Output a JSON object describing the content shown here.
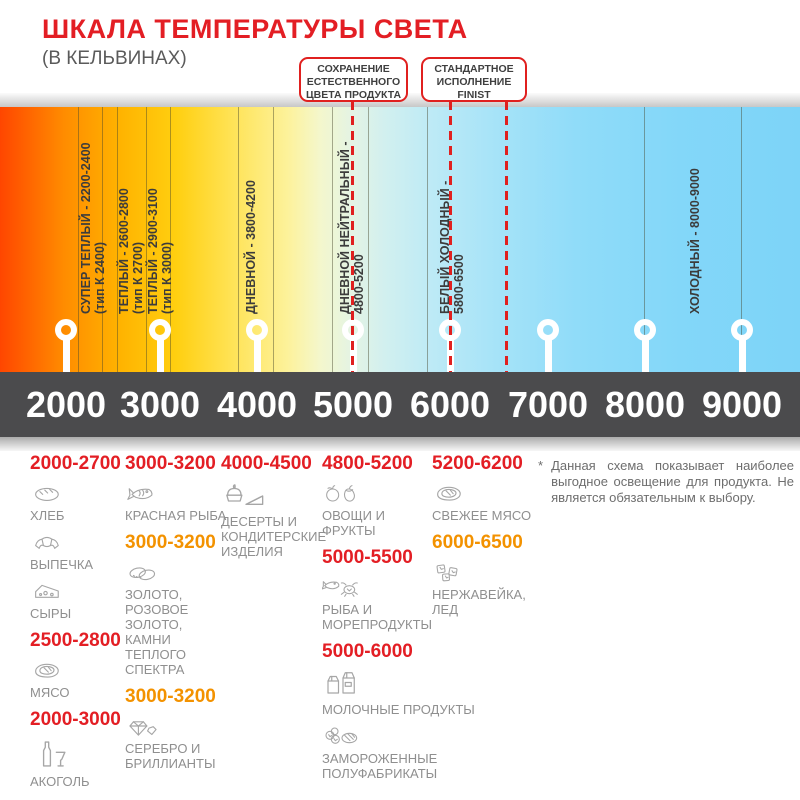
{
  "page": {
    "title": "ШКАЛА ТЕМПЕРАТУРЫ СВЕТА",
    "subtitle": "(В КЕЛЬВИНАХ)"
  },
  "callouts": {
    "preserve": {
      "line1": "СОХРАНЕНИЕ",
      "line2": "ЕСТЕСТВЕННОГО",
      "line3": "ЦВЕТА ПРОДУКТА"
    },
    "standard": {
      "line1": "СТАНДАРТНОЕ",
      "line2": "ИСПОЛНЕНИЕ",
      "line3": "FINIST"
    }
  },
  "gradient_zones": [
    {
      "label": "СУПЕР ТЕПЛЫЙ - 2200-2400",
      "sub": "(тип К 2400)"
    },
    {
      "label": "ТЕПЛЫЙ - 2600-2800",
      "sub": "(тип К 2700)"
    },
    {
      "label": "ТЕПЛЫЙ - 2900-3100",
      "sub": "(тип К 3000)"
    },
    {
      "label": "ДНЕВНОЙ - 3800-4200",
      "sub": ""
    },
    {
      "label": "ДНЕВНОЙ НЕЙТРАЛЬНЫЙ -",
      "sub": "4800-5200"
    },
    {
      "label": "БЕЛЫЙ ХОЛОДНЫЙ -",
      "sub": "5800-6500"
    },
    {
      "label": "ХОЛОДНЫЙ - 8000-9000",
      "sub": ""
    }
  ],
  "scale": {
    "unit": "K",
    "ticks": [
      "2000",
      "3000",
      "4000",
      "5000",
      "6000",
      "7000",
      "8000",
      "9000"
    ]
  },
  "colors": {
    "accent_red": "#e31e24",
    "accent_orange": "#f39200",
    "scale_bar": "#4b4b4d",
    "gradient_left": "#ff4600",
    "gradient_right": "#7dd4f8"
  },
  "columns": [
    {
      "blocks": [
        {
          "range": "2000-2700",
          "tone": "red",
          "items": [
            {
              "icon": "bread",
              "label": "ХЛЕБ"
            },
            {
              "icon": "croissant",
              "label": "ВЫПЕЧКА"
            },
            {
              "icon": "cheese",
              "label": "СЫРЫ"
            }
          ]
        },
        {
          "range": "2500-2800",
          "tone": "red",
          "items": [
            {
              "icon": "meat",
              "label": "МЯСО"
            }
          ]
        },
        {
          "range": "2000-3000",
          "tone": "red",
          "items": [
            {
              "icon": "alcohol",
              "label": "АКОГОЛЬ"
            }
          ]
        }
      ]
    },
    {
      "blocks": [
        {
          "range": "3000-3200",
          "tone": "red",
          "items": [
            {
              "icon": "fish",
              "label": "КРАСНАЯ РЫБА"
            }
          ]
        },
        {
          "range": "3000-3200",
          "tone": "orange",
          "items": [
            {
              "icon": "rings",
              "label": "ЗОЛОТО, РОЗОВОЕ ЗОЛОТО, КАМНИ ТЕПЛОГО СПЕКТРА"
            }
          ]
        },
        {
          "range": "3000-3200",
          "tone": "orange",
          "items": [
            {
              "icon": "diamond",
              "label": "СЕРЕБРО И БРИЛЛИАНТЫ"
            }
          ]
        }
      ]
    },
    {
      "blocks": [
        {
          "range": "4000-4500",
          "tone": "red",
          "items": [
            {
              "icon": "dessert",
              "label": "ДЕСЕРТЫ И КОНДИТЕРСКИЕ ИЗДЕЛИЯ"
            }
          ]
        }
      ]
    },
    {
      "blocks": [
        {
          "range": "4800-5200",
          "tone": "red",
          "items": [
            {
              "icon": "fruits",
              "label": "ОВОЩИ И ФРУКТЫ"
            }
          ]
        },
        {
          "range": "5000-5500",
          "tone": "red",
          "items": [
            {
              "icon": "seafood",
              "label": "РЫБА И МОРЕПРОДУКТЫ"
            }
          ]
        },
        {
          "range": "5000-6000",
          "tone": "red",
          "items": [
            {
              "icon": "milk",
              "label": "МОЛОЧНЫЕ ПРОДУКТЫ"
            },
            {
              "icon": "frozen",
              "label": "ЗАМОРОЖЕННЫЕ ПОЛУФАБРИКАТЫ"
            }
          ]
        }
      ]
    },
    {
      "blocks": [
        {
          "range": "5200-6200",
          "tone": "red",
          "items": [
            {
              "icon": "meat",
              "label": "СВЕЖЕЕ МЯСО"
            }
          ]
        },
        {
          "range": "6000-6500",
          "tone": "orange",
          "items": [
            {
              "icon": "ice",
              "label": "НЕРЖАВЕЙКА, ЛЕД"
            }
          ]
        }
      ]
    }
  ],
  "footnote": {
    "marker": "*",
    "text": "Данная схема показывает наиболее выгодное освещение для продукта. Не является обязательным к выбору."
  }
}
